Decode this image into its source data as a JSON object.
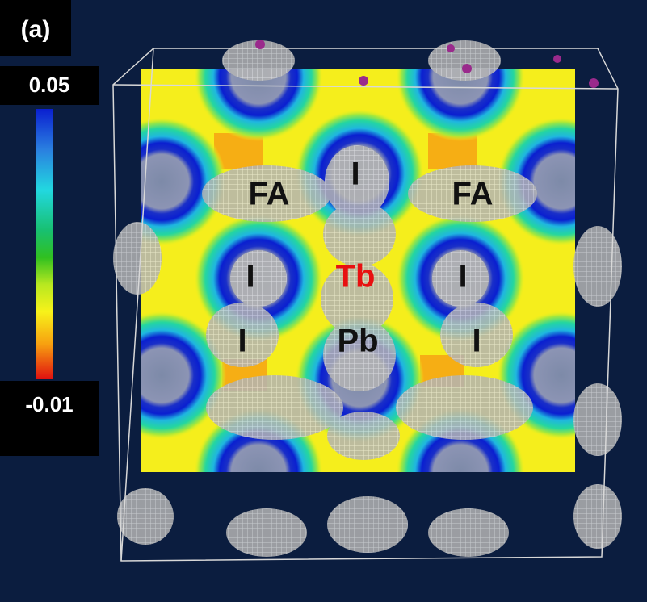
{
  "panel_label": "(a)",
  "colorbar": {
    "max_label": "0.05",
    "min_label": "-0.01"
  },
  "atom_labels": [
    {
      "text": "FA"
    },
    {
      "text": "I"
    },
    {
      "text": "FA"
    },
    {
      "text": "I"
    },
    {
      "text": "Tb"
    },
    {
      "text": "I"
    },
    {
      "text": "I"
    },
    {
      "text": "Pb"
    },
    {
      "text": "I"
    }
  ]
}
